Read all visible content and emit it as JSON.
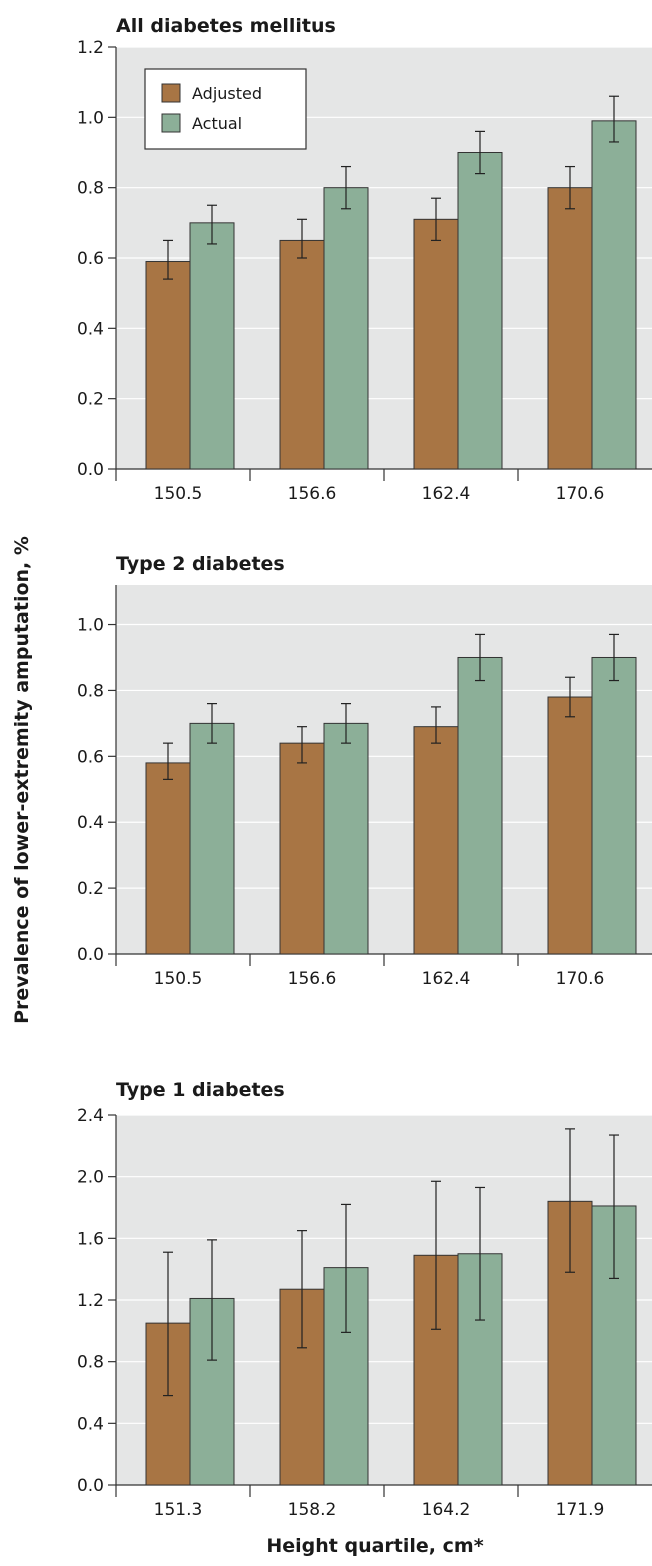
{
  "chart_data": [
    {
      "type": "bar",
      "title": "All diabetes mellitus",
      "categories": [
        "150.5",
        "156.6",
        "162.4",
        "170.6"
      ],
      "ylim": [
        0,
        1.2
      ],
      "yticks": [
        "0.0",
        "0.2",
        "0.4",
        "0.6",
        "0.8",
        "1.0",
        "1.2"
      ],
      "grid": true,
      "legend": "top-left",
      "series": [
        {
          "name": "Adjusted",
          "color": "#a87544",
          "values": [
            0.59,
            0.65,
            0.71,
            0.8
          ],
          "err_low": [
            0.54,
            0.6,
            0.65,
            0.74
          ],
          "err_high": [
            0.65,
            0.71,
            0.77,
            0.86
          ]
        },
        {
          "name": "Actual",
          "color": "#8caf98",
          "values": [
            0.7,
            0.8,
            0.9,
            0.99
          ],
          "err_low": [
            0.64,
            0.74,
            0.84,
            0.93
          ],
          "err_high": [
            0.75,
            0.86,
            0.96,
            1.06
          ]
        }
      ]
    },
    {
      "type": "bar",
      "title": "Type 2 diabetes",
      "categories": [
        "150.5",
        "156.6",
        "162.4",
        "170.6"
      ],
      "ylim": [
        0,
        1.12
      ],
      "yticks": [
        "0.0",
        "0.2",
        "0.4",
        "0.6",
        "0.8",
        "1.0"
      ],
      "grid": true,
      "series": [
        {
          "name": "Adjusted",
          "color": "#a87544",
          "values": [
            0.58,
            0.64,
            0.69,
            0.78
          ],
          "err_low": [
            0.53,
            0.58,
            0.64,
            0.72
          ],
          "err_high": [
            0.64,
            0.69,
            0.75,
            0.84
          ]
        },
        {
          "name": "Actual",
          "color": "#8caf98",
          "values": [
            0.7,
            0.7,
            0.9,
            0.9
          ],
          "err_low": [
            0.64,
            0.64,
            0.83,
            0.83
          ],
          "err_high": [
            0.76,
            0.76,
            0.97,
            0.97
          ]
        }
      ]
    },
    {
      "type": "bar",
      "title": "Type 1 diabetes",
      "categories": [
        "151.3",
        "158.2",
        "164.2",
        "171.9"
      ],
      "ylim": [
        0,
        2.4
      ],
      "yticks": [
        "0.0",
        "0.4",
        "0.8",
        "1.2",
        "1.6",
        "2.0",
        "2.4"
      ],
      "grid": true,
      "series": [
        {
          "name": "Adjusted",
          "color": "#a87544",
          "values": [
            1.05,
            1.27,
            1.49,
            1.84
          ],
          "err_low": [
            0.58,
            0.89,
            1.01,
            1.38
          ],
          "err_high": [
            1.51,
            1.65,
            1.97,
            2.31
          ]
        },
        {
          "name": "Actual",
          "color": "#8caf98",
          "values": [
            1.21,
            1.41,
            1.5,
            1.81
          ],
          "err_low": [
            0.81,
            0.99,
            1.07,
            1.34
          ],
          "err_high": [
            1.59,
            1.82,
            1.93,
            2.27
          ]
        }
      ]
    }
  ],
  "ylabel": "Prevalence of lower-extremity amputation, %",
  "xlabel": "Height quartile, cm*",
  "colors": {
    "plot_background": "#e5e6e6",
    "gridline": "#ffffff",
    "axis": "#333333",
    "error_bar": "#222222"
  }
}
